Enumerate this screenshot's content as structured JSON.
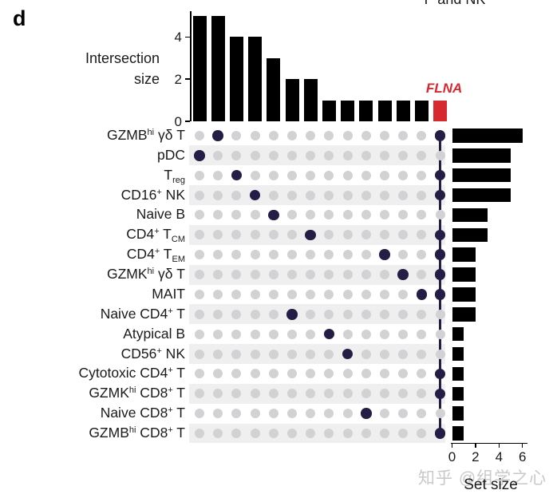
{
  "panel": {
    "label": "d"
  },
  "top_caption": {
    "text": "P and NK"
  },
  "watermark": {
    "text": "知乎 @组学之心"
  },
  "colors": {
    "bar": "#000000",
    "dot_active": "#241e46",
    "dot_inactive": "#d2d2d5",
    "stripe": "#efeff0",
    "highlight": "#d7282f",
    "watermark": "#c9c9c9",
    "axis_text": "#1a1a1a"
  },
  "chart_data": {
    "type": "upset",
    "title": "",
    "intersection_axis": {
      "label_lines": [
        "Intersection",
        "size"
      ],
      "ticks": [
        0,
        2,
        4
      ],
      "max": 5
    },
    "set_axis": {
      "label": "Set size",
      "ticks": [
        0,
        2,
        4,
        6
      ],
      "max": 6
    },
    "sets": [
      {
        "name": "GZMB-hi γδ T",
        "set_size": 6,
        "label_parts": [
          {
            "t": "GZMB"
          },
          {
            "t": "hi",
            "style": "sup"
          },
          {
            "t": " γδ T"
          }
        ]
      },
      {
        "name": "pDC",
        "set_size": 5,
        "label_parts": [
          {
            "t": "pDC"
          }
        ]
      },
      {
        "name": "Treg",
        "set_size": 5,
        "label_parts": [
          {
            "t": "T"
          },
          {
            "t": "reg",
            "style": "sub"
          }
        ]
      },
      {
        "name": "CD16+ NK",
        "set_size": 5,
        "label_parts": [
          {
            "t": "CD16"
          },
          {
            "t": "+",
            "style": "sup"
          },
          {
            "t": " NK"
          }
        ]
      },
      {
        "name": "Naive B",
        "set_size": 3,
        "label_parts": [
          {
            "t": "Naive B"
          }
        ]
      },
      {
        "name": "CD4+ TCM",
        "set_size": 3,
        "label_parts": [
          {
            "t": "CD4"
          },
          {
            "t": "+",
            "style": "sup"
          },
          {
            "t": " T"
          },
          {
            "t": "CM",
            "style": "sub"
          }
        ]
      },
      {
        "name": "CD4+ TEM",
        "set_size": 2,
        "label_parts": [
          {
            "t": "CD4"
          },
          {
            "t": "+",
            "style": "sup"
          },
          {
            "t": " T"
          },
          {
            "t": "EM",
            "style": "sub"
          }
        ]
      },
      {
        "name": "GZMK-hi γδ T",
        "set_size": 2,
        "label_parts": [
          {
            "t": "GZMK"
          },
          {
            "t": "hi",
            "style": "sup"
          },
          {
            "t": " γδ T"
          }
        ]
      },
      {
        "name": "MAIT",
        "set_size": 2,
        "label_parts": [
          {
            "t": "MAIT"
          }
        ]
      },
      {
        "name": "Naive CD4+ T",
        "set_size": 2,
        "label_parts": [
          {
            "t": "Naive CD4"
          },
          {
            "t": "+",
            "style": "sup"
          },
          {
            "t": " T"
          }
        ]
      },
      {
        "name": "Atypical B",
        "set_size": 1,
        "label_parts": [
          {
            "t": "Atypical B"
          }
        ]
      },
      {
        "name": "CD56+ NK",
        "set_size": 1,
        "label_parts": [
          {
            "t": "CD56"
          },
          {
            "t": "+",
            "style": "sup"
          },
          {
            "t": " NK"
          }
        ]
      },
      {
        "name": "Cytotoxic CD4+ T",
        "set_size": 1,
        "label_parts": [
          {
            "t": "Cytotoxic CD4"
          },
          {
            "t": "+",
            "style": "sup"
          },
          {
            "t": " T"
          }
        ]
      },
      {
        "name": "GZMK-hi CD8+ T",
        "set_size": 1,
        "label_parts": [
          {
            "t": "GZMK"
          },
          {
            "t": "hi",
            "style": "sup"
          },
          {
            "t": " CD8"
          },
          {
            "t": "+",
            "style": "sup"
          },
          {
            "t": " T"
          }
        ]
      },
      {
        "name": "Naive CD8+ T",
        "set_size": 1,
        "label_parts": [
          {
            "t": "Naive CD8"
          },
          {
            "t": "+",
            "style": "sup"
          },
          {
            "t": " T"
          }
        ]
      },
      {
        "name": "GZMB-hi CD8+ T",
        "set_size": 1,
        "label_parts": [
          {
            "t": "GZMB"
          },
          {
            "t": "hi",
            "style": "sup"
          },
          {
            "t": " CD8"
          },
          {
            "t": "+",
            "style": "sup"
          },
          {
            "t": " T"
          }
        ]
      }
    ],
    "intersections": [
      {
        "size": 5,
        "members": [
          "pDC"
        ],
        "highlight": false
      },
      {
        "size": 5,
        "members": [
          "GZMB-hi γδ T"
        ],
        "highlight": false
      },
      {
        "size": 4,
        "members": [
          "Treg"
        ],
        "highlight": false
      },
      {
        "size": 4,
        "members": [
          "CD16+ NK"
        ],
        "highlight": false
      },
      {
        "size": 3,
        "members": [
          "Naive B"
        ],
        "highlight": false
      },
      {
        "size": 2,
        "members": [
          "Naive CD4+ T"
        ],
        "highlight": false
      },
      {
        "size": 2,
        "members": [
          "CD4+ TCM"
        ],
        "highlight": false
      },
      {
        "size": 1,
        "members": [
          "Atypical B"
        ],
        "highlight": false
      },
      {
        "size": 1,
        "members": [
          "CD56+ NK"
        ],
        "highlight": false
      },
      {
        "size": 1,
        "members": [
          "Naive CD8+ T"
        ],
        "highlight": false
      },
      {
        "size": 1,
        "members": [
          "CD4+ TEM"
        ],
        "highlight": false
      },
      {
        "size": 1,
        "members": [
          "GZMK-hi γδ T"
        ],
        "highlight": false
      },
      {
        "size": 1,
        "members": [
          "MAIT"
        ],
        "highlight": false
      },
      {
        "size": 1,
        "members": [
          "GZMB-hi γδ T",
          "Treg",
          "CD16+ NK",
          "CD4+ TCM",
          "CD4+ TEM",
          "GZMK-hi γδ T",
          "MAIT",
          "Cytotoxic CD4+ T",
          "GZMK-hi CD8+ T",
          "GZMB-hi CD8+ T"
        ],
        "highlight": true,
        "gene_label": "FLNA"
      }
    ]
  }
}
